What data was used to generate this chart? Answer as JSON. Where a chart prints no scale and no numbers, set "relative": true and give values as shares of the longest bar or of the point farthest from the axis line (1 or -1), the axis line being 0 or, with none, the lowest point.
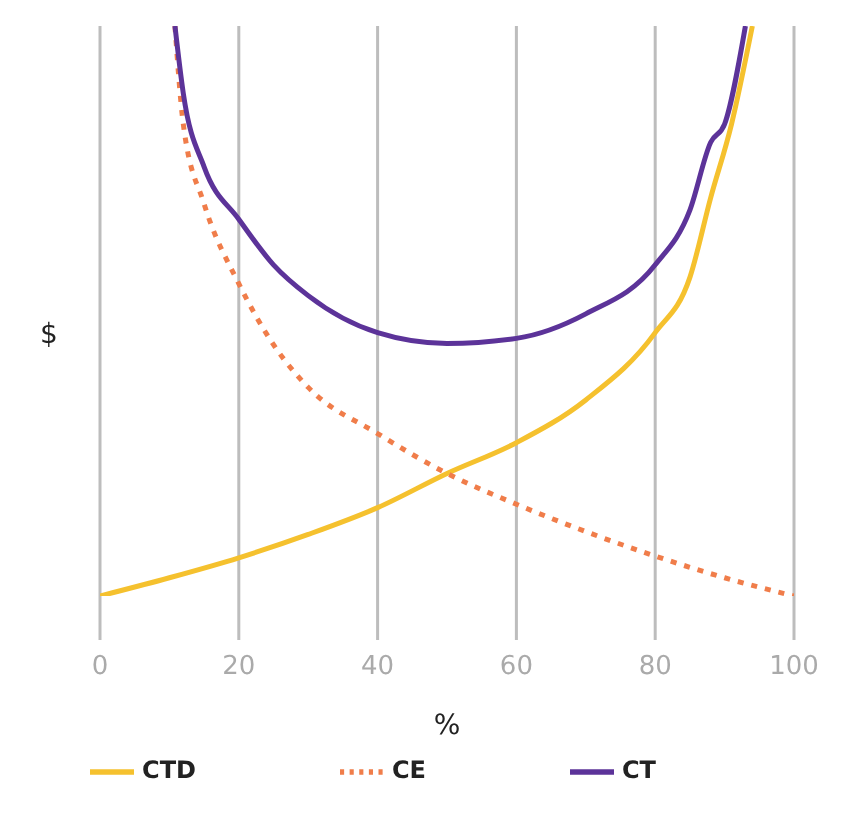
{
  "chart_data": {
    "type": "line",
    "relative": true,
    "xlabel": "%",
    "ylabel": "$",
    "xlim": [
      0,
      100
    ],
    "xticks": [
      0,
      20,
      40,
      60,
      80,
      100
    ],
    "grid": "x",
    "legend": "bottom",
    "marker": "none",
    "series": [
      {
        "name": "CTD",
        "color": "#f5c12e",
        "line_style": "solid",
        "x": [
          0,
          10,
          20,
          30,
          40,
          50,
          60,
          70,
          80,
          85,
          88,
          91,
          94
        ],
        "values": [
          0,
          0.032,
          0.067,
          0.108,
          0.155,
          0.215,
          0.269,
          0.344,
          0.462,
          0.559,
          0.699,
          0.828,
          1
        ]
      },
      {
        "name": "CE",
        "color": "#f07d4a",
        "line_style": "dotted",
        "x": [
          10.8,
          12,
          15,
          20,
          25,
          30,
          40,
          50,
          60,
          70,
          80,
          90,
          100
        ],
        "values": [
          1,
          0.828,
          0.688,
          0.548,
          0.441,
          0.366,
          0.285,
          0.215,
          0.161,
          0.113,
          0.07,
          0.032,
          0
        ]
      },
      {
        "name": "CT",
        "color": "#5c3399",
        "line_style": "solid",
        "x": [
          10.8,
          12,
          15,
          20,
          25,
          30,
          40,
          50,
          60,
          70,
          80,
          85,
          88,
          90,
          93
        ],
        "values": [
          1,
          0.882,
          0.753,
          0.661,
          0.581,
          0.527,
          0.462,
          0.443,
          0.452,
          0.495,
          0.581,
          0.677,
          0.796,
          0.828,
          1
        ]
      }
    ]
  }
}
